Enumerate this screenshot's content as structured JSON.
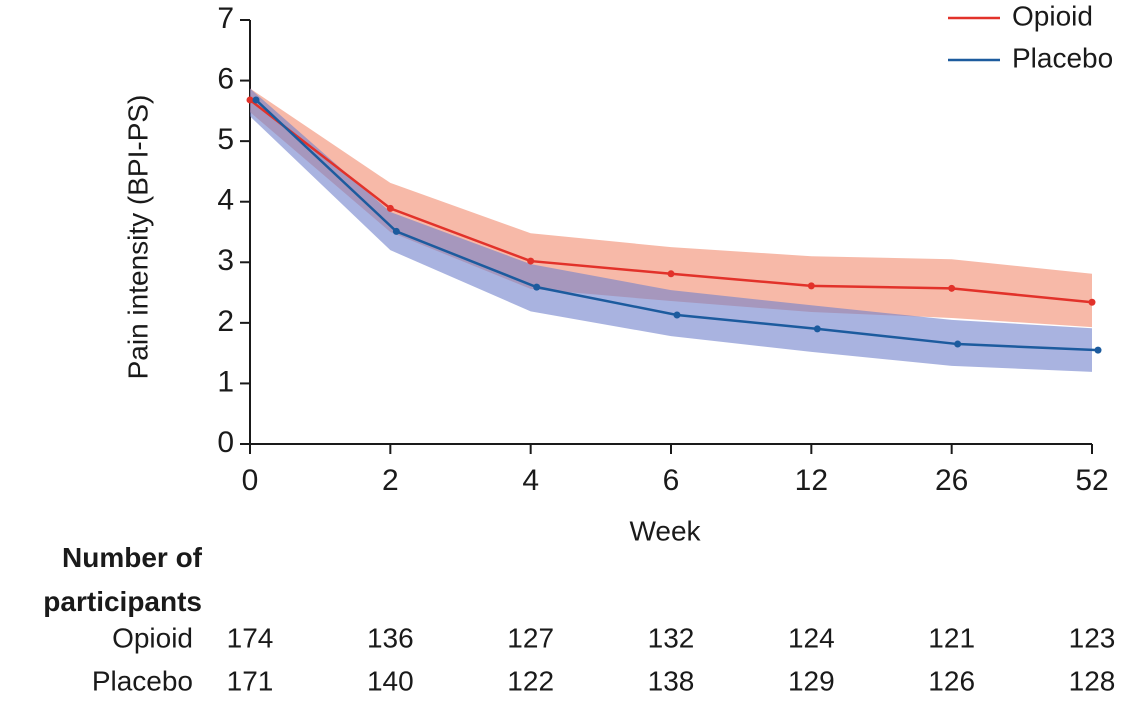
{
  "chart_data": {
    "type": "line",
    "y_label": "Pain intensity (BPI-PS)",
    "x_label": "Week",
    "categories": [
      "0",
      "2",
      "4",
      "6",
      "12",
      "26",
      "52"
    ],
    "ylim": [
      0,
      7
    ],
    "yticks": [
      0,
      1,
      2,
      3,
      4,
      5,
      6,
      7
    ],
    "legend": "top-right",
    "series": [
      {
        "name": "Opioid",
        "color": "#e2322a",
        "band_color": "#f28b6e",
        "values": [
          5.68,
          3.89,
          3.02,
          2.81,
          2.61,
          2.57,
          2.34
        ],
        "ci_upper": [
          5.87,
          4.31,
          3.48,
          3.25,
          3.1,
          3.05,
          2.81
        ],
        "ci_lower": [
          5.48,
          3.5,
          2.56,
          2.36,
          2.18,
          2.08,
          1.93
        ]
      },
      {
        "name": "Placebo",
        "color": "#1c5b9e",
        "band_color": "#6f80cc",
        "values": [
          5.68,
          3.51,
          2.59,
          2.13,
          1.9,
          1.65,
          1.55
        ],
        "ci_upper": [
          5.87,
          3.83,
          2.97,
          2.54,
          2.29,
          2.05,
          1.91
        ],
        "ci_lower": [
          5.41,
          3.2,
          2.19,
          1.78,
          1.52,
          1.29,
          1.19
        ]
      }
    ],
    "at_risk": {
      "title": "Number of participants",
      "rows": [
        {
          "name": "Opioid",
          "values": [
            174,
            136,
            127,
            132,
            124,
            121,
            123
          ]
        },
        {
          "name": "Placebo",
          "values": [
            171,
            140,
            122,
            138,
            129,
            126,
            128
          ]
        }
      ]
    }
  }
}
